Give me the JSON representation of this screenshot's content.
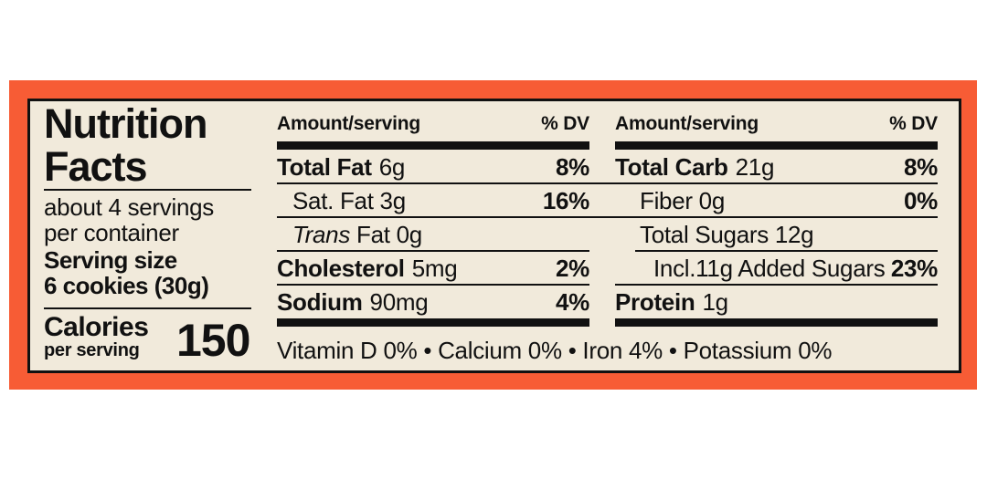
{
  "label": {
    "title_line1": "Nutrition",
    "title_line2": "Facts",
    "servings_line1": "about 4 servings",
    "servings_line2": "per container",
    "serving_size_label": "Serving size",
    "serving_size_value": "6 cookies (30g)",
    "calories_label": "Calories",
    "calories_sublabel": "per serving",
    "calories_value": "150",
    "columns": [
      {
        "header_amount": "Amount/serving",
        "header_dv": "% DV",
        "rows": [
          {
            "bold": "Total Fat",
            "text": "6g",
            "dv": "8%"
          },
          {
            "text": "Sat. Fat 3g",
            "dv": "16%"
          },
          {
            "italic": "Trans",
            "text": "Fat 0g"
          },
          {
            "bold": "Cholesterol",
            "text": "5mg",
            "dv": "2%"
          },
          {
            "bold": "Sodium",
            "text": "90mg",
            "dv": "4%"
          }
        ]
      },
      {
        "header_amount": "Amount/serving",
        "header_dv": "% DV",
        "rows": [
          {
            "bold": "Total Carb",
            "text": "21g",
            "dv": "8%"
          },
          {
            "text": "Fiber 0g",
            "dv": "0%"
          },
          {
            "text": "Total Sugars 12g"
          },
          {
            "text": "Incl.11g Added Sugars",
            "dv": "23%"
          },
          {
            "bold": "Protein",
            "text": "1g"
          }
        ]
      }
    ],
    "footer": "Vitamin D 0% • Calcium 0% • Iron 4% • Potassium 0%",
    "colors": {
      "border": "#F75C35",
      "background": "#F1EADB",
      "ink": "#111111"
    }
  }
}
